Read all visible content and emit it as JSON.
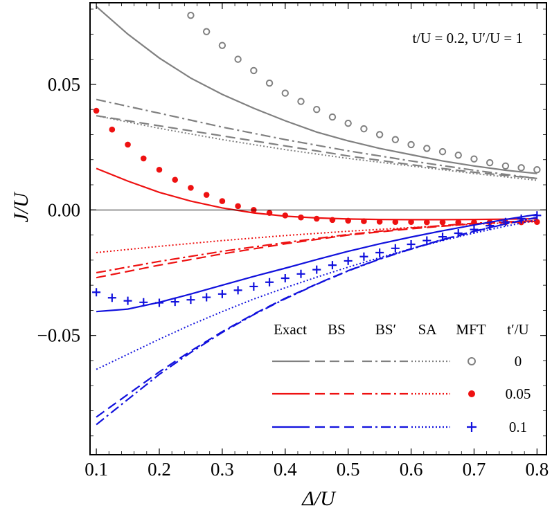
{
  "chart_data": {
    "type": "line",
    "annotation": "t/U = 0.2, U′/U = 1",
    "xlabel": "Δ/U",
    "ylabel": "J/U",
    "xlim": [
      0.09,
      0.815
    ],
    "ylim": [
      -0.0975,
      0.0825
    ],
    "xticks": [
      0.1,
      0.2,
      0.3,
      0.4,
      0.5,
      0.6,
      0.7,
      0.8
    ],
    "xtick_labels": [
      "0.1",
      "0.2",
      "0.3",
      "0.4",
      "0.5",
      "0.6",
      "0.7",
      "0.8"
    ],
    "yticks": [
      -0.05,
      0.0,
      0.05
    ],
    "ytick_labels": [
      "−0.05",
      "0.00",
      "0.05"
    ],
    "zero_line": true,
    "legend": {
      "methods": [
        "Exact",
        "BS",
        "BS′",
        "SA",
        "MFT"
      ],
      "param_label": "t′/U",
      "groups": [
        {
          "t_prime": "0",
          "color": "#808080",
          "marker": "open-circle"
        },
        {
          "t_prime": "0.05",
          "color": "#ee1111",
          "marker": "filled-circle"
        },
        {
          "t_prime": "0.1",
          "color": "#1111dd",
          "marker": "plus"
        }
      ]
    },
    "series": [
      {
        "name": "Exact",
        "t_prime": "0",
        "style": "solid",
        "color": "#808080",
        "x": [
          0.1,
          0.15,
          0.2,
          0.25,
          0.3,
          0.35,
          0.4,
          0.45,
          0.5,
          0.55,
          0.6,
          0.65,
          0.7,
          0.75,
          0.8
        ],
        "y": [
          0.081,
          0.07,
          0.0605,
          0.0525,
          0.046,
          0.0405,
          0.0355,
          0.031,
          0.0275,
          0.0245,
          0.022,
          0.0195,
          0.0175,
          0.0158,
          0.0145
        ]
      },
      {
        "name": "BS",
        "t_prime": "0",
        "style": "dashed",
        "color": "#808080",
        "x": [
          0.1,
          0.2,
          0.3,
          0.4,
          0.5,
          0.6,
          0.7,
          0.8
        ],
        "y": [
          0.0375,
          0.0335,
          0.0295,
          0.0255,
          0.0215,
          0.018,
          0.015,
          0.0125
        ]
      },
      {
        "name": "BS′",
        "t_prime": "0",
        "style": "dashdot",
        "color": "#808080",
        "x": [
          0.1,
          0.2,
          0.3,
          0.4,
          0.5,
          0.6,
          0.7,
          0.8
        ],
        "y": [
          0.044,
          0.0385,
          0.033,
          0.028,
          0.0235,
          0.0195,
          0.0158,
          0.0125
        ]
      },
      {
        "name": "SA",
        "t_prime": "0",
        "style": "dotted",
        "color": "#808080",
        "x": [
          0.1,
          0.2,
          0.3,
          0.4,
          0.5,
          0.6,
          0.7,
          0.8
        ],
        "y": [
          0.0375,
          0.0325,
          0.028,
          0.024,
          0.0205,
          0.0175,
          0.0145,
          0.0118
        ]
      },
      {
        "name": "MFT",
        "t_prime": "0",
        "style": "open-circle",
        "color": "#808080",
        "x": [
          0.25,
          0.275,
          0.3,
          0.325,
          0.35,
          0.375,
          0.4,
          0.425,
          0.45,
          0.475,
          0.5,
          0.525,
          0.55,
          0.575,
          0.6,
          0.625,
          0.65,
          0.675,
          0.7,
          0.725,
          0.75,
          0.775,
          0.8
        ],
        "y": [
          0.0775,
          0.071,
          0.0655,
          0.06,
          0.0555,
          0.0505,
          0.0465,
          0.0432,
          0.04,
          0.037,
          0.0345,
          0.0323,
          0.03,
          0.028,
          0.026,
          0.0245,
          0.0232,
          0.0218,
          0.0203,
          0.0188,
          0.0175,
          0.0168,
          0.016
        ]
      },
      {
        "name": "Exact",
        "t_prime": "0.05",
        "style": "solid",
        "color": "#ee1111",
        "x": [
          0.1,
          0.15,
          0.2,
          0.25,
          0.3,
          0.35,
          0.4,
          0.45,
          0.5,
          0.55,
          0.6,
          0.65,
          0.7,
          0.75,
          0.8
        ],
        "y": [
          0.0165,
          0.0115,
          0.007,
          0.0035,
          0.0008,
          -0.0012,
          -0.0025,
          -0.0032,
          -0.0036,
          -0.0038,
          -0.0039,
          -0.0039,
          -0.0038,
          -0.0037,
          -0.0035
        ]
      },
      {
        "name": "BS",
        "t_prime": "0.05",
        "style": "dashed",
        "color": "#ee1111",
        "x": [
          0.1,
          0.2,
          0.3,
          0.4,
          0.5,
          0.6,
          0.7,
          0.8
        ],
        "y": [
          -0.027,
          -0.022,
          -0.0175,
          -0.0135,
          -0.01,
          -0.0075,
          -0.0055,
          -0.0045
        ]
      },
      {
        "name": "BS′",
        "t_prime": "0.05",
        "style": "dashdot",
        "color": "#ee1111",
        "x": [
          0.1,
          0.2,
          0.3,
          0.4,
          0.5,
          0.6,
          0.7,
          0.8
        ],
        "y": [
          -0.025,
          -0.0205,
          -0.0165,
          -0.013,
          -0.0098,
          -0.0072,
          -0.0053,
          -0.0043
        ]
      },
      {
        "name": "SA",
        "t_prime": "0.05",
        "style": "dotted",
        "color": "#ee1111",
        "x": [
          0.1,
          0.2,
          0.3,
          0.4,
          0.5,
          0.6,
          0.7,
          0.8
        ],
        "y": [
          -0.017,
          -0.0145,
          -0.0122,
          -0.0102,
          -0.0085,
          -0.007,
          -0.0057,
          -0.0047
        ]
      },
      {
        "name": "MFT",
        "t_prime": "0.05",
        "style": "filled-circle",
        "color": "#ee1111",
        "x": [
          0.1,
          0.125,
          0.15,
          0.175,
          0.2,
          0.225,
          0.25,
          0.275,
          0.3,
          0.325,
          0.35,
          0.375,
          0.4,
          0.425,
          0.45,
          0.475,
          0.5,
          0.525,
          0.55,
          0.575,
          0.6,
          0.625,
          0.65,
          0.675,
          0.7,
          0.725,
          0.75,
          0.775,
          0.8
        ],
        "y": [
          0.0395,
          0.032,
          0.026,
          0.0205,
          0.016,
          0.012,
          0.0088,
          0.006,
          0.0035,
          0.0015,
          0.0,
          -0.0012,
          -0.0022,
          -0.003,
          -0.0035,
          -0.004,
          -0.0043,
          -0.0045,
          -0.0047,
          -0.0048,
          -0.0048,
          -0.0049,
          -0.0049,
          -0.0049,
          -0.0049,
          -0.0049,
          -0.0049,
          -0.0049,
          -0.0048
        ]
      },
      {
        "name": "Exact",
        "t_prime": "0.1",
        "style": "solid",
        "color": "#1111dd",
        "x": [
          0.1,
          0.15,
          0.2,
          0.25,
          0.3,
          0.35,
          0.4,
          0.45,
          0.5,
          0.55,
          0.6,
          0.65,
          0.7,
          0.75,
          0.8
        ],
        "y": [
          -0.0405,
          -0.0395,
          -0.0368,
          -0.0335,
          -0.03,
          -0.0265,
          -0.0232,
          -0.0198,
          -0.0165,
          -0.0135,
          -0.0108,
          -0.0083,
          -0.006,
          -0.0038,
          -0.0018
        ]
      },
      {
        "name": "BS",
        "t_prime": "0.1",
        "style": "dashed",
        "color": "#1111dd",
        "x": [
          0.1,
          0.15,
          0.2,
          0.25,
          0.3,
          0.35,
          0.4,
          0.45,
          0.5,
          0.55,
          0.6,
          0.65,
          0.7,
          0.75,
          0.8
        ],
        "y": [
          -0.0825,
          -0.0735,
          -0.0645,
          -0.0562,
          -0.0485,
          -0.0415,
          -0.0352,
          -0.0295,
          -0.0242,
          -0.0195,
          -0.0155,
          -0.0118,
          -0.0085,
          -0.0055,
          -0.003
        ]
      },
      {
        "name": "BS′",
        "t_prime": "0.1",
        "style": "dashdot",
        "color": "#1111dd",
        "x": [
          0.1,
          0.15,
          0.2,
          0.25,
          0.3,
          0.35,
          0.4,
          0.45,
          0.5,
          0.55,
          0.6,
          0.65,
          0.7,
          0.75,
          0.8
        ],
        "y": [
          -0.0855,
          -0.0755,
          -0.0655,
          -0.0568,
          -0.0488,
          -0.0417,
          -0.0354,
          -0.0296,
          -0.0243,
          -0.0196,
          -0.0156,
          -0.0119,
          -0.0086,
          -0.0056,
          -0.003
        ]
      },
      {
        "name": "SA",
        "t_prime": "0.1",
        "style": "dotted",
        "color": "#1111dd",
        "x": [
          0.1,
          0.15,
          0.2,
          0.25,
          0.3,
          0.35,
          0.4,
          0.45,
          0.5,
          0.55,
          0.6,
          0.65,
          0.7,
          0.75,
          0.8
        ],
        "y": [
          -0.0635,
          -0.0575,
          -0.0515,
          -0.0458,
          -0.0405,
          -0.0355,
          -0.031,
          -0.0268,
          -0.0228,
          -0.019,
          -0.0155,
          -0.0122,
          -0.0092,
          -0.0065,
          -0.004
        ]
      },
      {
        "name": "MFT",
        "t_prime": "0.1",
        "style": "plus",
        "color": "#1111dd",
        "x": [
          0.1,
          0.125,
          0.15,
          0.175,
          0.2,
          0.225,
          0.25,
          0.275,
          0.3,
          0.325,
          0.35,
          0.375,
          0.4,
          0.425,
          0.45,
          0.475,
          0.5,
          0.525,
          0.55,
          0.575,
          0.6,
          0.625,
          0.65,
          0.675,
          0.7,
          0.725,
          0.75,
          0.775,
          0.8
        ],
        "y": [
          -0.0328,
          -0.035,
          -0.0362,
          -0.0368,
          -0.037,
          -0.0366,
          -0.0358,
          -0.0348,
          -0.0335,
          -0.032,
          -0.0305,
          -0.0288,
          -0.0272,
          -0.0255,
          -0.0238,
          -0.022,
          -0.0203,
          -0.0186,
          -0.017,
          -0.0153,
          -0.0137,
          -0.0122,
          -0.0107,
          -0.0093,
          -0.0078,
          -0.0063,
          -0.0048,
          -0.0035,
          -0.0022
        ]
      }
    ]
  }
}
